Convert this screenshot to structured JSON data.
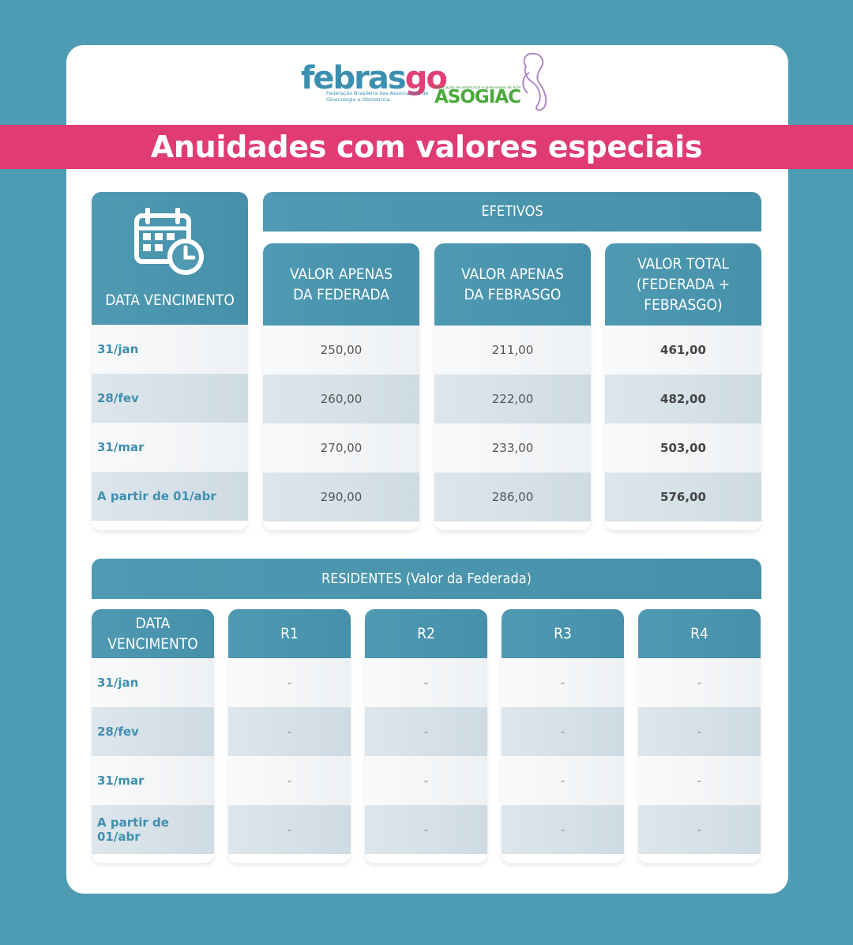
{
  "logos": {
    "febrasgo_word_a": "febras",
    "febrasgo_word_b": "go",
    "febrasgo_sub": "Federação Brasileira das Associações de Ginecologia e Obstetrícia",
    "asogiac_tagline": "Associação de obstetrícia e ginecologia do Acre",
    "asogiac_name": "ASOGIAC"
  },
  "banner": {
    "title": "Anuidades com valores especiais"
  },
  "efetivos": {
    "title": "EFETIVOS",
    "date_header": "DATA VENCIMENTO",
    "columns": [
      "VALOR APENAS DA FEDERADA",
      "VALOR APENAS DA FEBRASGO",
      "VALOR TOTAL (FEDERADA + FEBRASGO)"
    ],
    "rows": [
      {
        "date": "31/jan",
        "federada": "250,00",
        "febrasgo": "211,00",
        "total": "461,00"
      },
      {
        "date": "28/fev",
        "federada": "260,00",
        "febrasgo": "222,00",
        "total": "482,00"
      },
      {
        "date": "31/mar",
        "federada": "270,00",
        "febrasgo": "233,00",
        "total": "503,00"
      },
      {
        "date": "A partir de 01/abr",
        "federada": "290,00",
        "febrasgo": "286,00",
        "total": "576,00"
      }
    ]
  },
  "residentes": {
    "title": "RESIDENTES (Valor da Federada)",
    "date_header": "DATA VENCIMENTO",
    "columns": [
      "R1",
      "R2",
      "R3",
      "R4"
    ],
    "rows": [
      {
        "date": "31/jan",
        "values": [
          "-",
          "-",
          "-",
          "-"
        ]
      },
      {
        "date": "28/fev",
        "values": [
          "-",
          "-",
          "-",
          "-"
        ]
      },
      {
        "date": "31/mar",
        "values": [
          "-",
          "-",
          "-",
          "-"
        ]
      },
      {
        "date": "A partir de 01/abr",
        "values": [
          "-",
          "-",
          "-",
          "-"
        ]
      }
    ]
  },
  "colors": {
    "background": "#4e9bb4",
    "banner": "#e03c72",
    "header": "#4f9ab2",
    "date_text": "#3f8fae"
  },
  "icons": {
    "calendar": "calendar-clock-icon"
  }
}
